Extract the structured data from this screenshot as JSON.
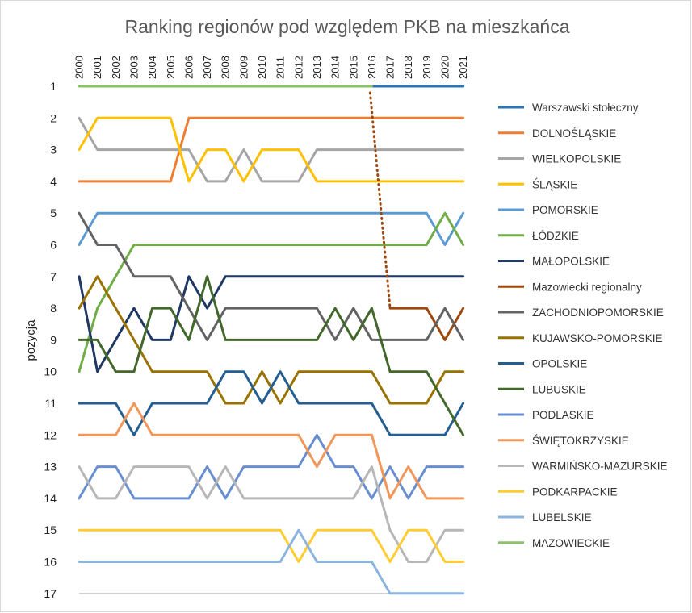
{
  "chart_data": {
    "type": "line",
    "title": "Ranking regionów pod względem PKB na mieszkańca",
    "xlabel": "",
    "ylabel": "pozycja",
    "x": [
      "2000",
      "2001",
      "2002",
      "2003",
      "2004",
      "2005",
      "2006",
      "2007",
      "2008",
      "2009",
      "2010",
      "2011",
      "2012",
      "2013",
      "2014",
      "2015",
      "2016",
      "2017",
      "2018",
      "2019",
      "2020",
      "2021"
    ],
    "y_ticks": [
      "1",
      "2",
      "3",
      "4",
      "5",
      "6",
      "7",
      "8",
      "9",
      "10",
      "11",
      "12",
      "13",
      "14",
      "15",
      "16",
      "17"
    ],
    "ylim": [
      1,
      17
    ],
    "y_inverted": true,
    "x_axis_position": "top",
    "x_tick_orientation": "vertical",
    "legend_position": "right",
    "gridlines": false,
    "series": [
      {
        "name": "Warszawski stołeczny",
        "color": "#2e75b6",
        "style": "solid",
        "values": [
          null,
          null,
          null,
          null,
          null,
          null,
          null,
          null,
          null,
          null,
          null,
          null,
          null,
          null,
          null,
          null,
          1,
          1,
          1,
          1,
          1,
          1
        ]
      },
      {
        "name": "DOLNOŚLĄSKIE",
        "color": "#ed7d31",
        "style": "solid",
        "values": [
          4,
          4,
          4,
          4,
          4,
          4,
          2,
          2,
          2,
          2,
          2,
          2,
          2,
          2,
          2,
          2,
          2,
          2,
          2,
          2,
          2,
          2
        ]
      },
      {
        "name": "WIELKOPOLSKIE",
        "color": "#a5a5a5",
        "style": "solid",
        "values": [
          2,
          3,
          3,
          3,
          3,
          3,
          3,
          4,
          4,
          3,
          4,
          4,
          4,
          3,
          3,
          3,
          3,
          3,
          3,
          3,
          3,
          3
        ]
      },
      {
        "name": "ŚLĄSKIE",
        "color": "#ffc000",
        "style": "solid",
        "values": [
          3,
          2,
          2,
          2,
          2,
          2,
          4,
          3,
          3,
          4,
          3,
          3,
          3,
          4,
          4,
          4,
          4,
          4,
          4,
          4,
          4,
          4
        ]
      },
      {
        "name": "POMORSKIE",
        "color": "#5b9bd5",
        "style": "solid",
        "values": [
          6,
          5,
          5,
          5,
          5,
          5,
          5,
          5,
          5,
          5,
          5,
          5,
          5,
          5,
          5,
          5,
          5,
          5,
          5,
          5,
          6,
          5
        ]
      },
      {
        "name": "ŁÓDZKIE",
        "color": "#70ad47",
        "style": "solid",
        "values": [
          10,
          8,
          7,
          6,
          6,
          6,
          6,
          6,
          6,
          6,
          6,
          6,
          6,
          6,
          6,
          6,
          6,
          6,
          6,
          6,
          5,
          6
        ]
      },
      {
        "name": "MAŁOPOLSKIE",
        "color": "#203864",
        "style": "solid",
        "values": [
          7,
          10,
          9,
          8,
          9,
          9,
          7,
          8,
          7,
          7,
          7,
          7,
          7,
          7,
          7,
          7,
          7,
          7,
          7,
          7,
          7,
          7
        ]
      },
      {
        "name": "Mazowiecki regionalny",
        "color": "#9e480e",
        "style": "solid",
        "values": [
          null,
          null,
          null,
          null,
          null,
          null,
          null,
          null,
          null,
          null,
          null,
          null,
          null,
          null,
          null,
          null,
          null,
          8,
          8,
          8,
          9,
          8
        ]
      },
      {
        "name": "ZACHODNIOPOMORSKIE",
        "color": "#636363",
        "style": "solid",
        "values": [
          5,
          6,
          6,
          7,
          7,
          7,
          8,
          9,
          8,
          8,
          8,
          8,
          8,
          8,
          9,
          8,
          9,
          9,
          9,
          9,
          8,
          9
        ]
      },
      {
        "name": "KUJAWSKO-POMORSKIE",
        "color": "#997300",
        "style": "solid",
        "values": [
          8,
          7,
          8,
          9,
          10,
          10,
          10,
          10,
          11,
          11,
          10,
          11,
          10,
          10,
          10,
          10,
          10,
          11,
          11,
          11,
          10,
          10
        ]
      },
      {
        "name": "OPOLSKIE",
        "color": "#255e91",
        "style": "solid",
        "values": [
          11,
          11,
          11,
          12,
          11,
          11,
          11,
          11,
          10,
          10,
          11,
          10,
          11,
          11,
          11,
          11,
          11,
          12,
          12,
          12,
          12,
          11
        ]
      },
      {
        "name": "LUBUSKIE",
        "color": "#43682b",
        "style": "solid",
        "values": [
          9,
          9,
          10,
          10,
          8,
          8,
          9,
          7,
          9,
          9,
          9,
          9,
          9,
          9,
          8,
          9,
          8,
          10,
          10,
          10,
          11,
          12
        ]
      },
      {
        "name": "PODLASKIE",
        "color": "#698ed0",
        "style": "solid",
        "values": [
          14,
          13,
          13,
          14,
          14,
          14,
          14,
          13,
          14,
          13,
          13,
          13,
          13,
          12,
          13,
          13,
          14,
          13,
          14,
          13,
          13,
          13
        ]
      },
      {
        "name": "ŚWIĘTOKRZYSKIE",
        "color": "#f1975a",
        "style": "solid",
        "values": [
          12,
          12,
          12,
          11,
          12,
          12,
          12,
          12,
          12,
          12,
          12,
          12,
          12,
          13,
          12,
          12,
          12,
          14,
          13,
          14,
          14,
          14
        ]
      },
      {
        "name": "WARMIŃSKO-MAZURSKIE",
        "color": "#b7b7b7",
        "style": "solid",
        "values": [
          13,
          14,
          14,
          13,
          13,
          13,
          13,
          14,
          13,
          14,
          14,
          14,
          14,
          14,
          14,
          14,
          13,
          15,
          16,
          16,
          15,
          15
        ]
      },
      {
        "name": "PODKARPACKIE",
        "color": "#ffcd33",
        "style": "solid",
        "values": [
          15,
          15,
          15,
          15,
          15,
          15,
          15,
          15,
          15,
          15,
          15,
          15,
          16,
          15,
          15,
          15,
          15,
          16,
          15,
          15,
          16,
          16
        ]
      },
      {
        "name": "LUBELSKIE",
        "color": "#8cb4e0",
        "style": "solid",
        "values": [
          16,
          16,
          16,
          16,
          16,
          16,
          16,
          16,
          16,
          16,
          16,
          16,
          15,
          16,
          16,
          16,
          16,
          17,
          17,
          17,
          17,
          17
        ]
      },
      {
        "name": "MAZOWIECKIE",
        "color": "#8cc168",
        "style": "solid",
        "values": [
          1,
          1,
          1,
          1,
          1,
          1,
          1,
          1,
          1,
          1,
          1,
          1,
          1,
          1,
          1,
          1,
          1,
          null,
          null,
          null,
          null,
          null
        ]
      }
    ],
    "connector": {
      "from": [
        "2016",
        1
      ],
      "to": [
        "2017",
        8
      ],
      "color": "#9e480e",
      "style": "dotted"
    }
  }
}
